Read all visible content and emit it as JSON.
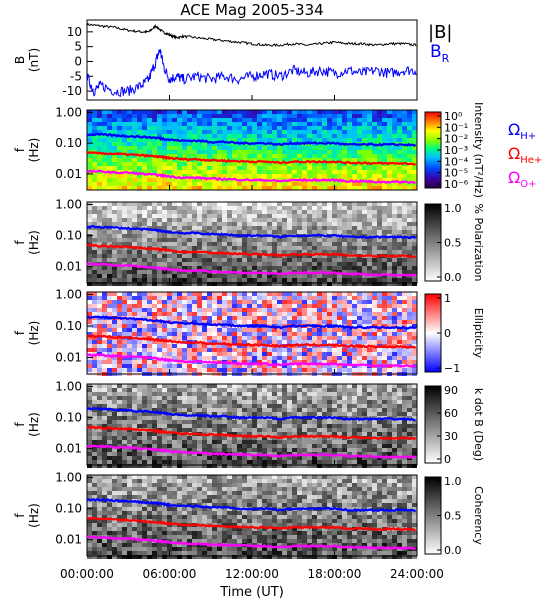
{
  "title": "ACE Mag 2005-334",
  "x_axis": {
    "label": "Time (UT)",
    "ticks": [
      "00:00:00",
      "06:00:00",
      "12:00:00",
      "18:00:00",
      "24:00:00"
    ]
  },
  "panels": [
    {
      "id": "mag",
      "ylabel_line1": "B",
      "ylabel_line2": "(nT)",
      "yticks": [
        "10",
        "5",
        "0",
        "-5",
        "-10"
      ],
      "legend": [
        {
          "text": "|B|",
          "color": "#000000"
        },
        {
          "text": "B",
          "sub": "R",
          "color": "#0000ff"
        }
      ]
    },
    {
      "id": "intensity",
      "ylabel_line1": "f",
      "ylabel_line2": "(Hz)",
      "yticks": [
        "1.00",
        "0.10",
        "0.01"
      ],
      "colorbar": {
        "type": "rainbow",
        "ticks": [
          "10⁰",
          "10⁻¹",
          "10⁻²",
          "10⁻³",
          "10⁻⁴",
          "10⁻⁵",
          "10⁻⁶"
        ],
        "label": "Intensity (nT²/Hz)"
      },
      "ion_labels": [
        {
          "text": "Ω",
          "sub": "H+",
          "color": "#0000ff"
        },
        {
          "text": "Ω",
          "sub": "He+",
          "color": "#ff0000"
        },
        {
          "text": "Ω",
          "sub": "O+",
          "color": "#ff00ff"
        }
      ]
    },
    {
      "id": "polarization",
      "ylabel_line1": "f",
      "ylabel_line2": "(Hz)",
      "yticks": [
        "1.00",
        "0.10",
        "0.01"
      ],
      "colorbar": {
        "type": "gray",
        "ticks": [
          "1.0",
          "0.5",
          "0.0"
        ],
        "label": "% Polarization"
      }
    },
    {
      "id": "ellipticity",
      "ylabel_line1": "f",
      "ylabel_line2": "(Hz)",
      "yticks": [
        "1.00",
        "0.10",
        "0.01"
      ],
      "colorbar": {
        "type": "bwr",
        "ticks": [
          "1",
          "0",
          "−1"
        ],
        "label": "Ellipticity"
      }
    },
    {
      "id": "kdotb",
      "ylabel_line1": "f",
      "ylabel_line2": "(Hz)",
      "yticks": [
        "1.00",
        "0.10",
        "0.01"
      ],
      "colorbar": {
        "type": "gray",
        "ticks": [
          "90",
          "60",
          "30",
          "0"
        ],
        "label": "k dot B (Deg)"
      }
    },
    {
      "id": "coherency",
      "ylabel_line1": "f",
      "ylabel_line2": "(Hz)",
      "yticks": [
        "1.00",
        "0.10",
        "0.01"
      ],
      "colorbar": {
        "type": "gray",
        "ticks": [
          "1.0",
          "0.5",
          "0.0"
        ],
        "label": "Coherency"
      }
    }
  ],
  "colors": {
    "bmag": "#000000",
    "br": "#0000ff",
    "h_plus": "#0000ff",
    "he_plus": "#ff0000",
    "o_plus": "#ff00ff"
  },
  "chart_data": [
    {
      "type": "line",
      "x_unit": "hours UT",
      "xlim": [
        0,
        24
      ],
      "ylim": [
        -13,
        14
      ],
      "series": [
        {
          "name": "|B|",
          "x": [
            0,
            1,
            2,
            3,
            4,
            4.5,
            5,
            5.5,
            6,
            6.5,
            7,
            8,
            9,
            10,
            11,
            12,
            13,
            14,
            15,
            16,
            17,
            18,
            19,
            20,
            21,
            22,
            23,
            24
          ],
          "y": [
            12.5,
            12,
            11.5,
            10.5,
            10,
            10,
            12,
            10,
            9,
            8,
            8.5,
            8,
            7.5,
            7,
            6.5,
            6,
            5.5,
            5.5,
            6,
            5.5,
            6,
            6.5,
            6,
            6,
            5.5,
            6,
            6,
            5.5
          ]
        },
        {
          "name": "B_R",
          "x": [
            0,
            0.5,
            1,
            2,
            3,
            4,
            4.5,
            5,
            5.3,
            5.6,
            6,
            6.5,
            7,
            8,
            9,
            10,
            11,
            12,
            13,
            14,
            15,
            16,
            17,
            18,
            19,
            20,
            21,
            22,
            23,
            24
          ],
          "y": [
            -5,
            -10,
            -8,
            -10,
            -10,
            -8,
            -6,
            0,
            4,
            -2,
            -6,
            -5,
            -6,
            -5,
            -6,
            -5,
            -6,
            -5,
            -4,
            -5,
            -3,
            -4,
            -3,
            -4,
            -3,
            -4,
            -3,
            -4,
            -3,
            -3
          ]
        }
      ]
    },
    {
      "type": "line",
      "x_unit": "hours UT",
      "y_unit": "Hz (log)",
      "xlim": [
        0,
        24
      ],
      "ylim": [
        0.003,
        1.2
      ],
      "series": [
        {
          "name": "Ω_H+",
          "x": [
            0,
            1,
            2,
            3,
            4,
            5,
            5.5,
            6,
            7,
            8,
            9,
            10,
            11,
            12,
            13,
            14,
            15,
            16,
            17,
            18,
            19,
            20,
            21,
            22,
            23,
            24
          ],
          "y": [
            0.19,
            0.19,
            0.18,
            0.17,
            0.16,
            0.15,
            0.14,
            0.13,
            0.12,
            0.12,
            0.11,
            0.11,
            0.1,
            0.1,
            0.1,
            0.09,
            0.1,
            0.1,
            0.1,
            0.1,
            0.09,
            0.09,
            0.09,
            0.09,
            0.09,
            0.085
          ]
        },
        {
          "name": "Ω_He+",
          "x": [
            0,
            1,
            2,
            3,
            4,
            5,
            5.5,
            6,
            7,
            8,
            9,
            10,
            11,
            12,
            13,
            14,
            15,
            16,
            17,
            18,
            19,
            20,
            21,
            22,
            23,
            24
          ],
          "y": [
            0.048,
            0.047,
            0.045,
            0.043,
            0.04,
            0.037,
            0.035,
            0.033,
            0.03,
            0.03,
            0.028,
            0.027,
            0.026,
            0.025,
            0.025,
            0.023,
            0.025,
            0.025,
            0.025,
            0.025,
            0.023,
            0.023,
            0.022,
            0.022,
            0.022,
            0.021
          ]
        },
        {
          "name": "Ω_O+",
          "x": [
            0,
            1,
            2,
            3,
            4,
            5,
            5.5,
            6,
            7,
            8,
            9,
            10,
            11,
            12,
            13,
            14,
            15,
            16,
            17,
            18,
            19,
            20,
            21,
            22,
            23,
            24
          ],
          "y": [
            0.012,
            0.012,
            0.011,
            0.011,
            0.01,
            0.0093,
            0.0088,
            0.0083,
            0.0075,
            0.0075,
            0.007,
            0.0068,
            0.0065,
            0.0063,
            0.0063,
            0.0058,
            0.0063,
            0.0063,
            0.0063,
            0.0063,
            0.0058,
            0.0058,
            0.0055,
            0.0055,
            0.0055,
            0.0053
          ]
        }
      ]
    }
  ]
}
